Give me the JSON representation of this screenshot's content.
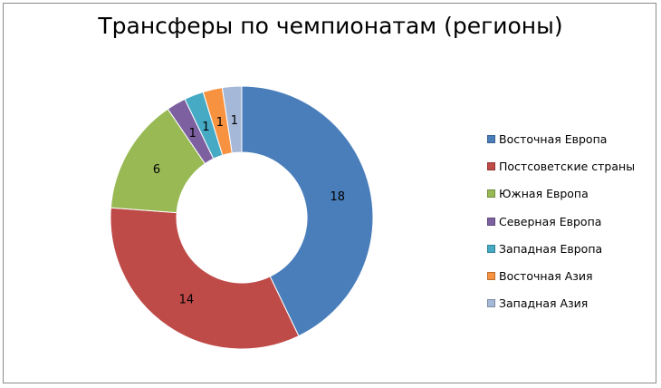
{
  "chart_data": {
    "type": "pie",
    "variant": "doughnut",
    "title": "Трансферы по чемпионатам (регионы)",
    "categories": [
      "Восточная Европа",
      "Постсоветские страны",
      "Южная Европа",
      "Северная Европа",
      "Западная Европа",
      "Восточная Азия",
      "Западная Азия"
    ],
    "values": [
      18,
      14,
      6,
      1,
      1,
      1,
      1
    ],
    "colors": [
      "#4a7ebb",
      "#be4b48",
      "#98b954",
      "#7d60a0",
      "#46aac5",
      "#f69240",
      "#a5b8d8"
    ],
    "legend_position": "right"
  }
}
